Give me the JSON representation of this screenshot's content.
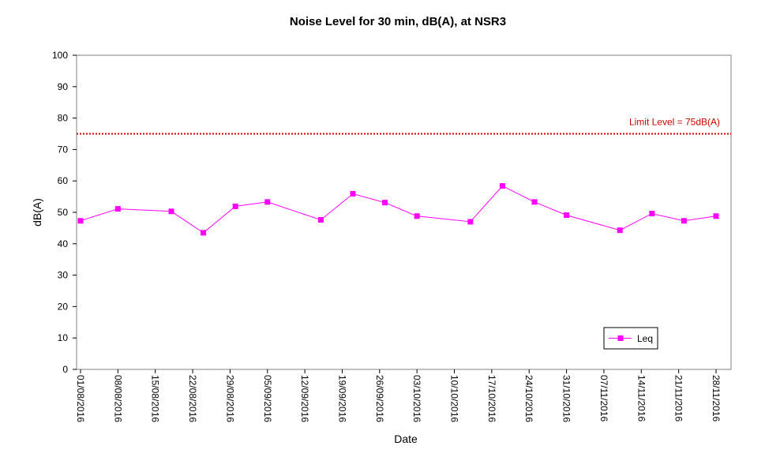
{
  "chart_data": {
    "type": "line",
    "title": "Noise Level for 30 min, dB(A), at NSR3",
    "xlabel": "Date",
    "ylabel": "dB(A)",
    "ylim": [
      0,
      100
    ],
    "yticks": [
      0,
      10,
      20,
      30,
      40,
      50,
      60,
      70,
      80,
      90,
      100
    ],
    "xlim": [
      "2016-08-01",
      "2016-11-28"
    ],
    "xticks": [
      "01/08/2016",
      "08/08/2016",
      "15/08/2016",
      "22/08/2016",
      "29/08/2016",
      "05/09/2016",
      "12/09/2016",
      "19/09/2016",
      "26/09/2016",
      "03/10/2016",
      "10/10/2016",
      "17/10/2016",
      "24/10/2016",
      "31/10/2016",
      "07/11/2016",
      "14/11/2016",
      "21/11/2016",
      "28/11/2016"
    ],
    "legend_position": "bottom-right",
    "grid": false,
    "series": [
      {
        "name": "Leq",
        "color": "#ff00ff",
        "marker": "square",
        "x": [
          "2016-08-01",
          "2016-08-08",
          "2016-08-18",
          "2016-08-24",
          "2016-08-30",
          "2016-09-05",
          "2016-09-15",
          "2016-09-21",
          "2016-09-27",
          "2016-10-03",
          "2016-10-13",
          "2016-10-19",
          "2016-10-25",
          "2016-10-31",
          "2016-11-10",
          "2016-11-16",
          "2016-11-22",
          "2016-11-28"
        ],
        "values": [
          47.3,
          51.1,
          50.3,
          43.5,
          51.9,
          53.3,
          47.6,
          55.9,
          53.1,
          48.8,
          47.0,
          58.4,
          53.3,
          49.1,
          44.3,
          49.6,
          47.3,
          48.8
        ]
      }
    ],
    "reference_line": {
      "label": "Limit Level = 75dB(A)",
      "value": 75,
      "color": "#cc0000",
      "style": "dotted"
    }
  }
}
